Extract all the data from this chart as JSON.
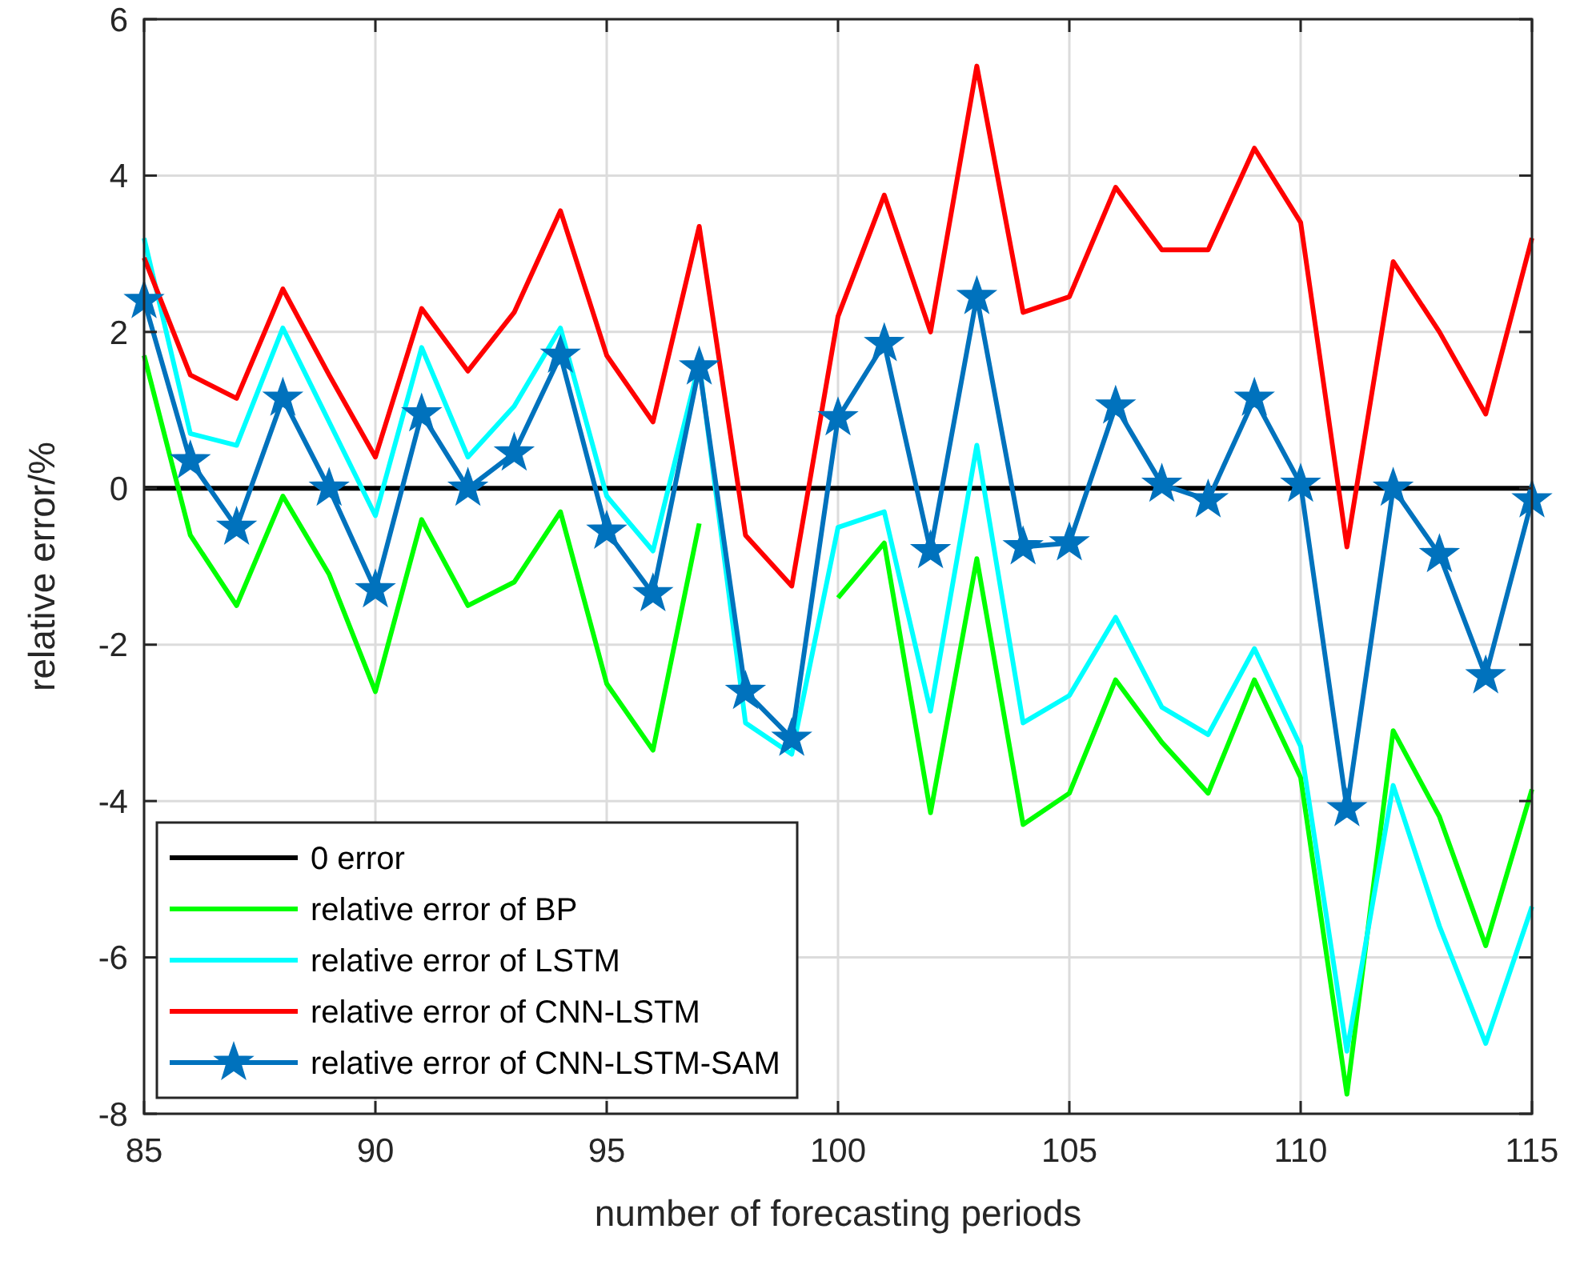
{
  "chart_data": {
    "type": "line",
    "xlabel": "number of forecasting periods",
    "ylabel": "relative error/%",
    "x": [
      85,
      86,
      87,
      88,
      89,
      90,
      91,
      92,
      93,
      94,
      95,
      96,
      97,
      98,
      99,
      100,
      101,
      102,
      103,
      104,
      105,
      106,
      107,
      108,
      109,
      110,
      111,
      112,
      113,
      114,
      115
    ],
    "xlim": [
      85,
      115
    ],
    "xticks": [
      85,
      90,
      95,
      100,
      105,
      110,
      115
    ],
    "ylim": [
      -8,
      6
    ],
    "yticks": [
      -8,
      -6,
      -4,
      -2,
      0,
      2,
      4,
      6
    ],
    "grid": true,
    "legend": "bottom left",
    "line_style": "solid",
    "ref_lines": [
      {
        "axis": "y",
        "value": 0,
        "label": "0 error",
        "color": "#000000"
      }
    ],
    "series": [
      {
        "name": "relative error of BP",
        "color": "#00ff00",
        "marker": "none",
        "values": [
          1.7,
          -0.6,
          -1.5,
          -0.1,
          -1.1,
          -2.6,
          -0.4,
          -1.5,
          -1.2,
          -0.3,
          -2.5,
          -3.35,
          -0.45,
          null,
          null,
          -1.4,
          -0.7,
          -4.15,
          -0.9,
          -4.3,
          -3.9,
          -2.45,
          -3.25,
          -3.9,
          -2.45,
          -3.7,
          -7.75,
          -3.1,
          -4.2,
          -5.85,
          -3.85
        ]
      },
      {
        "name": "relative error of LSTM",
        "color": "#00ffff",
        "marker": "none",
        "values": [
          3.2,
          0.7,
          0.55,
          2.05,
          0.85,
          -0.35,
          1.8,
          0.4,
          1.05,
          2.05,
          -0.1,
          -0.8,
          1.6,
          -3.0,
          -3.4,
          -0.5,
          -0.3,
          -2.85,
          0.55,
          -3.0,
          -2.65,
          -1.65,
          -2.8,
          -3.15,
          -2.05,
          -3.3,
          -7.2,
          -3.8,
          -5.6,
          -7.1,
          -5.35
        ]
      },
      {
        "name": "relative error of CNN-LSTM",
        "color": "#ff0000",
        "marker": "none",
        "values": [
          2.95,
          1.45,
          1.15,
          2.55,
          1.45,
          0.4,
          2.3,
          1.5,
          2.25,
          3.55,
          1.7,
          0.85,
          3.35,
          -0.6,
          -1.25,
          2.2,
          3.75,
          2.0,
          5.4,
          2.25,
          2.45,
          3.85,
          3.05,
          3.05,
          4.35,
          3.4,
          -0.75,
          2.9,
          2.0,
          0.95,
          3.2
        ]
      },
      {
        "name": "relative error of CNN-LSTM-SAM",
        "color": "#0072bd",
        "marker": "star",
        "values": [
          2.4,
          0.35,
          -0.5,
          1.15,
          0.0,
          -1.3,
          0.95,
          0.0,
          0.45,
          1.7,
          -0.55,
          -1.35,
          1.55,
          -2.6,
          -3.2,
          0.9,
          1.85,
          -0.8,
          2.45,
          -0.75,
          -0.7,
          1.05,
          0.05,
          -0.15,
          1.15,
          0.05,
          -4.1,
          0.0,
          -0.85,
          -2.4,
          -0.15
        ]
      }
    ]
  }
}
